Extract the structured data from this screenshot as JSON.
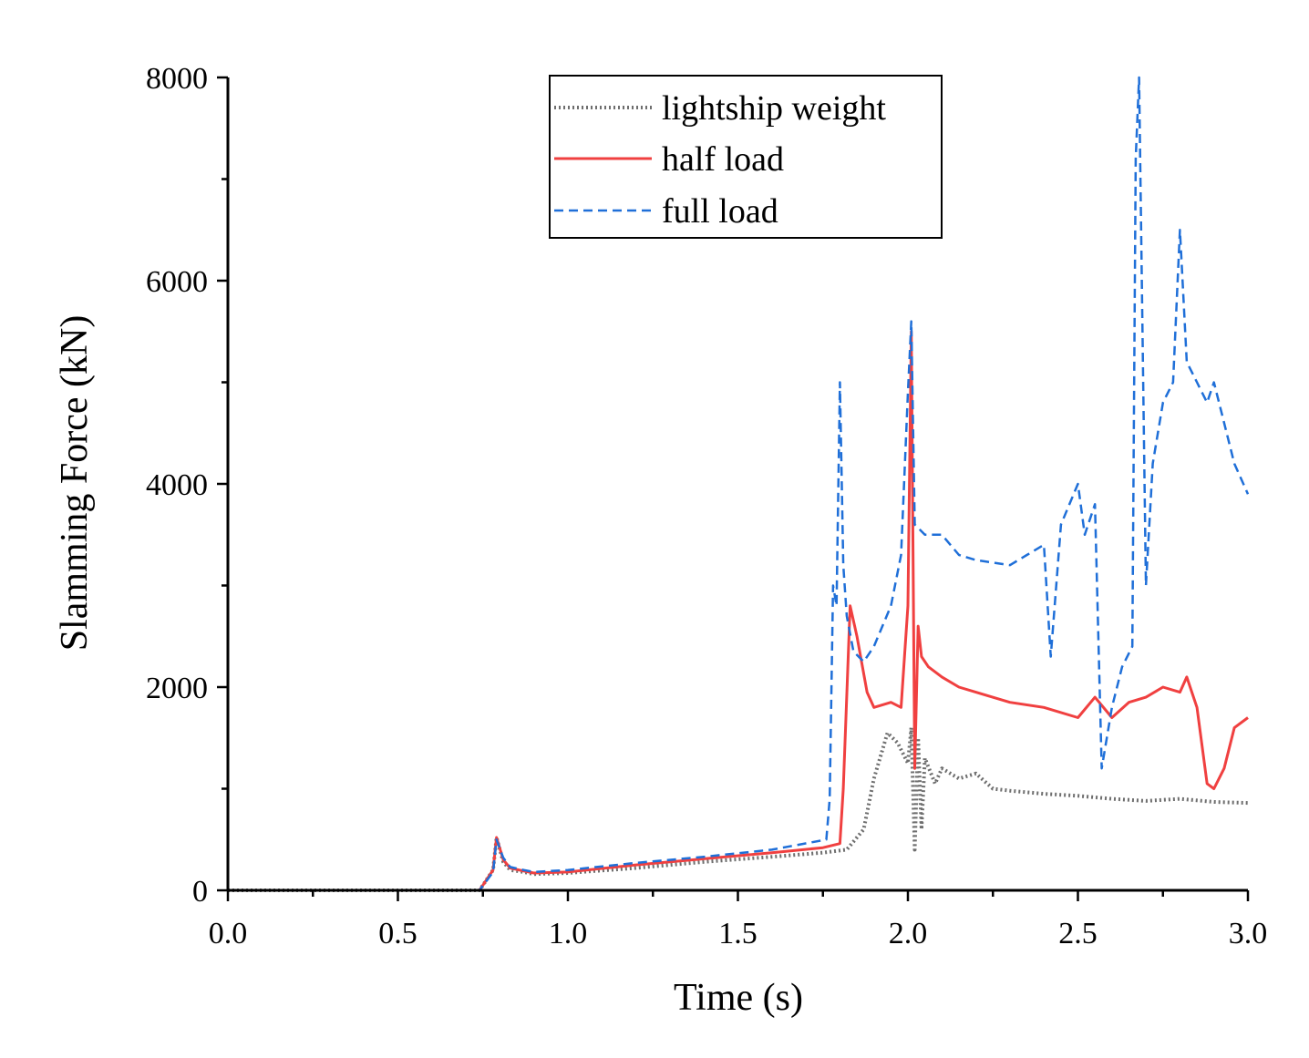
{
  "chart_data": {
    "type": "line",
    "title": "",
    "xlabel": "Time (s)",
    "ylabel": "Slamming Force (kN)",
    "xlim": [
      0,
      3.0
    ],
    "ylim": [
      0,
      8000
    ],
    "x_ticks": [
      "0.0",
      "0.5",
      "1.0",
      "1.5",
      "2.0",
      "2.5",
      "3.0"
    ],
    "y_ticks": [
      "0",
      "2000",
      "4000",
      "6000",
      "8000"
    ],
    "legend_position": "top-center",
    "series": [
      {
        "name": "lightship weight",
        "style": "dotted",
        "color": "#6e6e6e",
        "x": [
          0,
          0.74,
          0.78,
          0.79,
          0.81,
          0.83,
          0.87,
          0.9,
          1.0,
          1.2,
          1.4,
          1.6,
          1.75,
          1.82,
          1.87,
          1.9,
          1.94,
          1.97,
          2.0,
          2.01,
          2.02,
          2.03,
          2.04,
          2.05,
          2.08,
          2.1,
          2.15,
          2.2,
          2.25,
          2.3,
          2.4,
          2.5,
          2.6,
          2.7,
          2.8,
          2.9,
          3.0
        ],
        "y": [
          0,
          0,
          200,
          520,
          280,
          200,
          180,
          160,
          170,
          220,
          280,
          330,
          370,
          400,
          600,
          1100,
          1550,
          1450,
          1250,
          1600,
          400,
          1500,
          600,
          1300,
          1050,
          1200,
          1100,
          1150,
          1000,
          980,
          950,
          930,
          900,
          880,
          900,
          870,
          860
        ]
      },
      {
        "name": "half load",
        "style": "solid",
        "color": "#f04040",
        "x": [
          0,
          0.74,
          0.78,
          0.79,
          0.81,
          0.83,
          0.87,
          0.9,
          1.0,
          1.2,
          1.4,
          1.6,
          1.75,
          1.8,
          1.81,
          1.83,
          1.85,
          1.88,
          1.9,
          1.95,
          1.98,
          2.0,
          2.01,
          2.02,
          2.03,
          2.04,
          2.06,
          2.1,
          2.15,
          2.2,
          2.3,
          2.4,
          2.5,
          2.55,
          2.6,
          2.65,
          2.7,
          2.75,
          2.8,
          2.82,
          2.85,
          2.88,
          2.9,
          2.93,
          2.96,
          3.0
        ],
        "y": [
          0,
          0,
          200,
          520,
          300,
          220,
          190,
          170,
          180,
          250,
          310,
          370,
          420,
          460,
          1000,
          2800,
          2500,
          1950,
          1800,
          1850,
          1800,
          2800,
          5500,
          1200,
          2600,
          2300,
          2200,
          2100,
          2000,
          1950,
          1850,
          1800,
          1700,
          1900,
          1700,
          1850,
          1900,
          2000,
          1950,
          2100,
          1800,
          1050,
          1000,
          1200,
          1600,
          1700
        ]
      },
      {
        "name": "full load",
        "style": "dashed",
        "color": "#1f6fd8",
        "x": [
          0,
          0.74,
          0.78,
          0.79,
          0.81,
          0.83,
          0.87,
          0.9,
          1.0,
          1.2,
          1.4,
          1.6,
          1.76,
          1.77,
          1.78,
          1.79,
          1.8,
          1.81,
          1.82,
          1.84,
          1.87,
          1.9,
          1.95,
          1.98,
          2.0,
          2.01,
          2.02,
          2.05,
          2.1,
          2.15,
          2.2,
          2.3,
          2.35,
          2.4,
          2.42,
          2.45,
          2.5,
          2.52,
          2.55,
          2.57,
          2.6,
          2.63,
          2.66,
          2.67,
          2.68,
          2.7,
          2.72,
          2.75,
          2.78,
          2.8,
          2.82,
          2.85,
          2.88,
          2.9,
          2.93,
          2.96,
          3.0
        ],
        "y": [
          0,
          0,
          180,
          500,
          320,
          230,
          200,
          180,
          200,
          270,
          330,
          400,
          500,
          900,
          3000,
          2800,
          5000,
          3200,
          2700,
          2350,
          2250,
          2400,
          2800,
          3300,
          4900,
          5600,
          3600,
          3500,
          3500,
          3300,
          3250,
          3200,
          3300,
          3400,
          2300,
          3600,
          4000,
          3500,
          3800,
          1200,
          1800,
          2200,
          2400,
          7200,
          8000,
          3000,
          4200,
          4800,
          5000,
          6500,
          5200,
          5000,
          4800,
          5000,
          4600,
          4200,
          3900
        ]
      }
    ]
  }
}
